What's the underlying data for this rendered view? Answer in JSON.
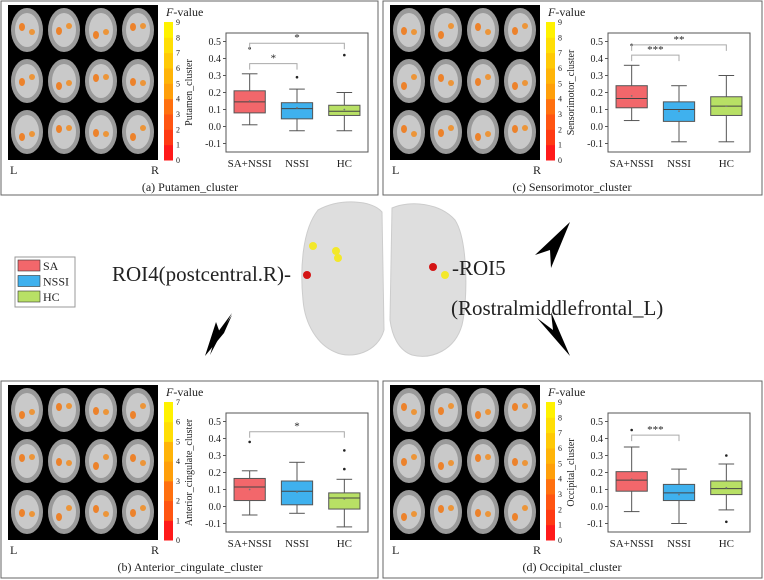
{
  "legend": {
    "items": [
      {
        "label": "SA",
        "color": "#f2676b"
      },
      {
        "label": "NSSI",
        "color": "#3fb1ee"
      },
      {
        "label": "HC",
        "color": "#b8e065"
      }
    ]
  },
  "center": {
    "roi4_label": "ROI4(postcentral.R)-",
    "roi5_label": "-ROI5",
    "roi5_sub": "(Rostralmiddlefrontal_L)"
  },
  "colorbar_title": "F-value",
  "orientation": {
    "left": "L",
    "right": "R"
  },
  "colors": {
    "SA+NSSI": "#f2676b",
    "NSSI": "#3fb1ee",
    "HC": "#b8e065",
    "frame": "#555555"
  },
  "chart_data": [
    {
      "type": "box",
      "caption": "(a) Putamen_cluster",
      "ylabel": "Putamen_cluster",
      "ylim": [
        -0.15,
        0.55
      ],
      "yticks": [
        "-0.1",
        "0.0",
        "0.1",
        "0.2",
        "0.3",
        "0.4",
        "0.5"
      ],
      "categories": [
        "SA+NSSI",
        "NSSI",
        "HC"
      ],
      "colorbar_ticks": [
        "0",
        "1",
        "2",
        "3",
        "4",
        "5",
        "6",
        "7",
        "8",
        "9"
      ],
      "boxes": [
        {
          "min": 0.01,
          "q1": 0.08,
          "median": 0.145,
          "q3": 0.21,
          "max": 0.31,
          "mean": 0.15,
          "outliers": [
            0.46
          ]
        },
        {
          "min": -0.025,
          "q1": 0.045,
          "median": 0.105,
          "q3": 0.14,
          "max": 0.22,
          "mean": 0.11,
          "outliers": [
            0.29
          ]
        },
        {
          "min": -0.025,
          "q1": 0.065,
          "median": 0.09,
          "q3": 0.125,
          "max": 0.2,
          "mean": 0.1,
          "outliers": [
            0.42
          ]
        }
      ],
      "significance": [
        {
          "from": 0,
          "to": 1,
          "label": "*",
          "level": 0.37
        },
        {
          "from": 0,
          "to": 2,
          "label": "*",
          "level": 0.49
        }
      ]
    },
    {
      "type": "box",
      "caption": "(c) Sensorimotor_cluster",
      "ylabel": "Sensorimotor_cluster",
      "ylim": [
        -0.15,
        0.55
      ],
      "yticks": [
        "-0.1",
        "0.0",
        "0.1",
        "0.2",
        "0.3",
        "0.4",
        "0.5"
      ],
      "categories": [
        "SA+NSSI",
        "NSSI",
        "HC"
      ],
      "colorbar_ticks": [
        "0",
        "1",
        "2",
        "3",
        "4",
        "5",
        "6",
        "7",
        "8",
        "9"
      ],
      "boxes": [
        {
          "min": 0.035,
          "q1": 0.11,
          "median": 0.165,
          "q3": 0.24,
          "max": 0.36,
          "mean": 0.18,
          "outliers": [
            0.48
          ]
        },
        {
          "min": -0.09,
          "q1": 0.03,
          "median": 0.1,
          "q3": 0.145,
          "max": 0.24,
          "mean": 0.09,
          "outliers": []
        },
        {
          "min": -0.09,
          "q1": 0.065,
          "median": 0.12,
          "q3": 0.175,
          "max": 0.3,
          "mean": 0.12,
          "outliers": []
        }
      ],
      "significance": [
        {
          "from": 0,
          "to": 1,
          "label": "***",
          "level": 0.42
        },
        {
          "from": 0,
          "to": 2,
          "label": "**",
          "level": 0.48
        }
      ]
    },
    {
      "type": "box",
      "caption": "(b) Anterior_cingulate_cluster",
      "ylabel": "Anterior_cingulate_cluster",
      "ylim": [
        -0.15,
        0.55
      ],
      "yticks": [
        "-0.1",
        "0.0",
        "0.1",
        "0.2",
        "0.3",
        "0.4",
        "0.5"
      ],
      "categories": [
        "SA+NSSI",
        "NSSI",
        "HC"
      ],
      "colorbar_ticks": [
        "0",
        "1",
        "2",
        "3",
        "4",
        "5",
        "6",
        "7"
      ],
      "boxes": [
        {
          "min": -0.05,
          "q1": 0.035,
          "median": 0.115,
          "q3": 0.165,
          "max": 0.21,
          "mean": 0.1,
          "outliers": [
            0.38
          ]
        },
        {
          "min": -0.04,
          "q1": 0.01,
          "median": 0.09,
          "q3": 0.15,
          "max": 0.26,
          "mean": 0.085,
          "outliers": []
        },
        {
          "min": -0.12,
          "q1": -0.015,
          "median": 0.05,
          "q3": 0.08,
          "max": 0.16,
          "mean": 0.045,
          "outliers": [
            0.22,
            0.33
          ]
        }
      ],
      "significance": [
        {
          "from": 0,
          "to": 2,
          "label": "*",
          "level": 0.44
        }
      ]
    },
    {
      "type": "box",
      "caption": "(d) Occipital_cluster",
      "ylabel": "Occipital_cluster",
      "ylim": [
        -0.15,
        0.55
      ],
      "yticks": [
        "-0.1",
        "0.0",
        "0.1",
        "0.2",
        "0.3",
        "0.4",
        "0.5"
      ],
      "categories": [
        "SA+NSSI",
        "NSSI",
        "HC"
      ],
      "colorbar_ticks": [
        "0",
        "1",
        "2",
        "3",
        "4",
        "5",
        "6",
        "7",
        "8",
        "9"
      ],
      "boxes": [
        {
          "min": -0.03,
          "q1": 0.09,
          "median": 0.155,
          "q3": 0.205,
          "max": 0.35,
          "mean": 0.16,
          "outliers": [
            0.45
          ]
        },
        {
          "min": -0.1,
          "q1": 0.035,
          "median": 0.08,
          "q3": 0.13,
          "max": 0.22,
          "mean": 0.07,
          "outliers": []
        },
        {
          "min": -0.02,
          "q1": 0.07,
          "median": 0.105,
          "q3": 0.15,
          "max": 0.25,
          "mean": 0.11,
          "outliers": [
            0.3,
            -0.09
          ]
        }
      ],
      "significance": [
        {
          "from": 0,
          "to": 1,
          "label": "***",
          "level": 0.42
        }
      ]
    }
  ]
}
